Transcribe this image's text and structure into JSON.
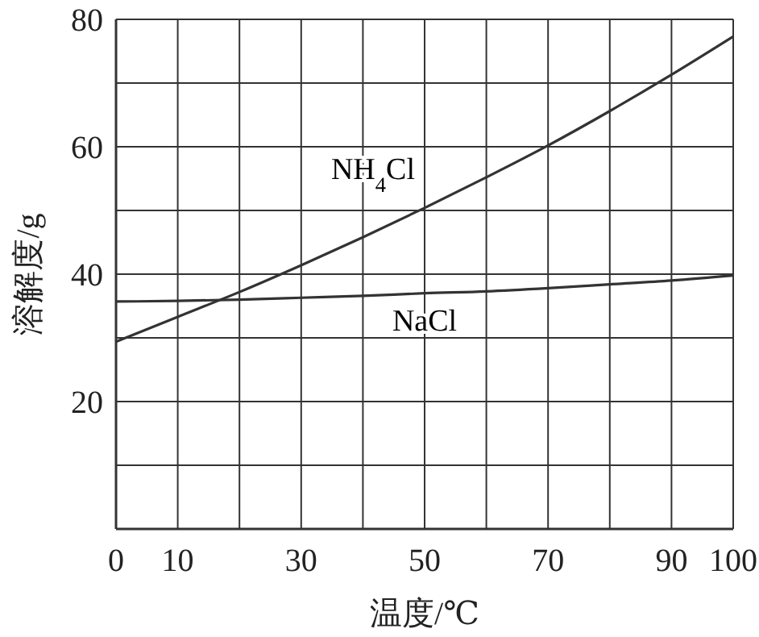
{
  "chart_data": {
    "type": "line",
    "xlabel": "温度/℃",
    "ylabel": "溶解度/g",
    "x": [
      0,
      10,
      20,
      30,
      40,
      50,
      60,
      70,
      80,
      90,
      100
    ],
    "series": [
      {
        "name": "NH$_{4}$Cl",
        "color": "#333333",
        "values": [
          29.4,
          33.3,
          37.2,
          41.4,
          45.8,
          50.4,
          55.2,
          60.2,
          65.6,
          71.3,
          77.3
        ]
      },
      {
        "name": "NaCl",
        "color": "#333333",
        "values": [
          35.7,
          35.8,
          36.0,
          36.3,
          36.6,
          37.0,
          37.3,
          37.8,
          38.4,
          39.0,
          39.8
        ]
      }
    ],
    "xlim": [
      0,
      100
    ],
    "ylim": [
      0,
      80
    ],
    "xticks": [
      0,
      10,
      {
        "value": 20,
        "label": null
      },
      30,
      {
        "value": 40,
        "label": null
      },
      50,
      {
        "value": 60,
        "label": null
      },
      70,
      {
        "value": 80,
        "label": null
      },
      90,
      100
    ],
    "yticks": [
      {
        "value": 0,
        "label": null
      },
      {
        "value": 10,
        "label": null
      },
      20,
      {
        "value": 30,
        "label": null
      },
      40,
      {
        "value": 50,
        "label": null
      },
      60,
      {
        "value": 70,
        "label": null
      },
      80
    ],
    "grid": true,
    "marker": "none",
    "line_style": "solid"
  }
}
